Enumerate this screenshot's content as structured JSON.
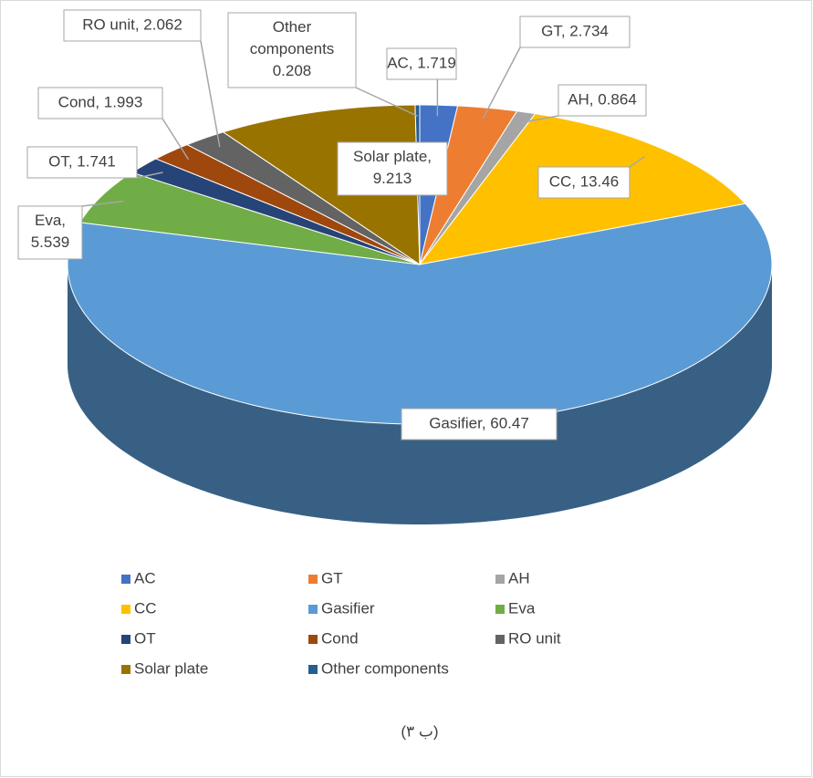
{
  "chart_data": {
    "type": "pie3d",
    "categories": [
      "AC",
      "GT",
      "AH",
      "CC",
      "Gasifier",
      "Eva",
      "OT",
      "Cond",
      "RO unit",
      "Solar plate",
      "Other components"
    ],
    "values": [
      1.719,
      2.734,
      0.864,
      13.46,
      60.47,
      5.539,
      1.741,
      1.993,
      2.062,
      9.213,
      0.208
    ],
    "value_labels": [
      "AC, 1.719",
      "GT, 2.734",
      "AH, 0.864",
      "CC, 13.46",
      "Gasifier, 60.47",
      "Eva,\n5.539",
      "OT, 1.741",
      "Cond, 1.993",
      "RO unit, 2.062",
      "Solar plate,\n9.213",
      "Other\ncomponents\n0.208"
    ],
    "colors": [
      "#4472c4",
      "#ed7d31",
      "#a5a5a5",
      "#ffc000",
      "#5b9bd5",
      "#70ad47",
      "#264478",
      "#9e480e",
      "#636363",
      "#997300",
      "#255e91"
    ],
    "legend": "bottom",
    "caption": "(۳ ب)"
  }
}
